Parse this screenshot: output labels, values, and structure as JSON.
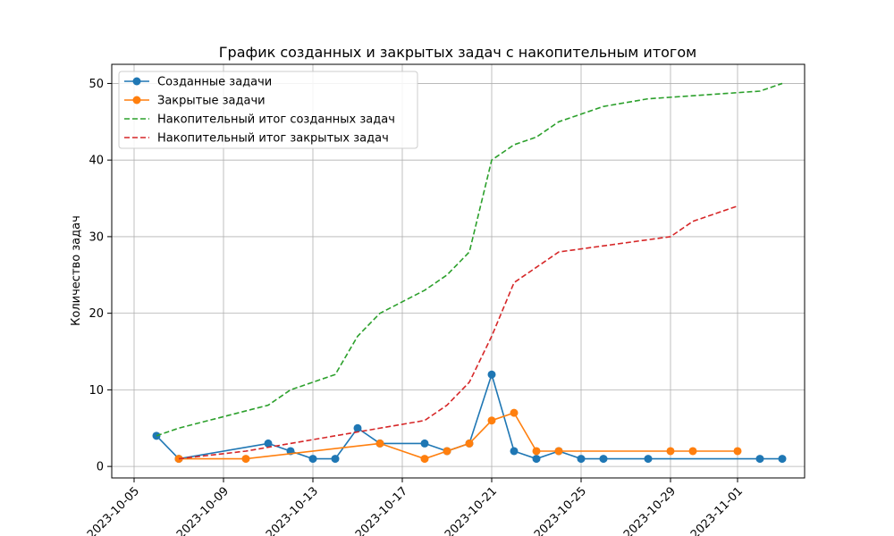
{
  "chart_data": {
    "type": "line",
    "title": "График созданных и закрытых задач с накопительным итогом",
    "xlabel": "",
    "ylabel": "Количество задач",
    "xlim": [
      "2023-10-04",
      "2023-11-04"
    ],
    "ylim": [
      -1.5,
      52.5
    ],
    "x_ticks": [
      "2023-10-05",
      "2023-10-09",
      "2023-10-13",
      "2023-10-17",
      "2023-10-21",
      "2023-10-25",
      "2023-10-29",
      "2023-11-01"
    ],
    "y_ticks": [
      0,
      10,
      20,
      30,
      40,
      50
    ],
    "grid": true,
    "legend_position": "top-left",
    "series": [
      {
        "name": "Созданные задачи",
        "style": "solid-marker",
        "color": "#1f77b4",
        "points": [
          [
            "2023-10-06",
            4
          ],
          [
            "2023-10-07",
            1
          ],
          [
            "2023-10-11",
            3
          ],
          [
            "2023-10-12",
            2
          ],
          [
            "2023-10-13",
            1
          ],
          [
            "2023-10-14",
            1
          ],
          [
            "2023-10-15",
            5
          ],
          [
            "2023-10-16",
            3
          ],
          [
            "2023-10-18",
            3
          ],
          [
            "2023-10-19",
            2
          ],
          [
            "2023-10-20",
            3
          ],
          [
            "2023-10-21",
            12
          ],
          [
            "2023-10-22",
            2
          ],
          [
            "2023-10-23",
            1
          ],
          [
            "2023-10-24",
            2
          ],
          [
            "2023-10-25",
            1
          ],
          [
            "2023-10-26",
            1
          ],
          [
            "2023-10-28",
            1
          ],
          [
            "2023-11-02",
            1
          ],
          [
            "2023-11-03",
            1
          ]
        ]
      },
      {
        "name": "Закрытые задачи",
        "style": "solid-marker",
        "color": "#ff7f0e",
        "points": [
          [
            "2023-10-07",
            1
          ],
          [
            "2023-10-10",
            1
          ],
          [
            "2023-10-16",
            3
          ],
          [
            "2023-10-18",
            1
          ],
          [
            "2023-10-19",
            2
          ],
          [
            "2023-10-20",
            3
          ],
          [
            "2023-10-21",
            6
          ],
          [
            "2023-10-22",
            7
          ],
          [
            "2023-10-23",
            2
          ],
          [
            "2023-10-24",
            2
          ],
          [
            "2023-10-29",
            2
          ],
          [
            "2023-10-30",
            2
          ],
          [
            "2023-11-01",
            2
          ]
        ]
      },
      {
        "name": "Накопительный итог созданных задач",
        "style": "dashed",
        "color": "#2ca02c",
        "points": [
          [
            "2023-10-06",
            4
          ],
          [
            "2023-10-07",
            5
          ],
          [
            "2023-10-11",
            8
          ],
          [
            "2023-10-12",
            10
          ],
          [
            "2023-10-13",
            11
          ],
          [
            "2023-10-14",
            12
          ],
          [
            "2023-10-15",
            17
          ],
          [
            "2023-10-16",
            20
          ],
          [
            "2023-10-18",
            23
          ],
          [
            "2023-10-19",
            25
          ],
          [
            "2023-10-20",
            28
          ],
          [
            "2023-10-21",
            40
          ],
          [
            "2023-10-22",
            42
          ],
          [
            "2023-10-23",
            43
          ],
          [
            "2023-10-24",
            45
          ],
          [
            "2023-10-25",
            46
          ],
          [
            "2023-10-26",
            47
          ],
          [
            "2023-10-28",
            48
          ],
          [
            "2023-11-02",
            49
          ],
          [
            "2023-11-03",
            50
          ]
        ]
      },
      {
        "name": "Накопительный итог закрытых задач",
        "style": "dashed",
        "color": "#d62728",
        "points": [
          [
            "2023-10-07",
            1
          ],
          [
            "2023-10-10",
            2
          ],
          [
            "2023-10-16",
            5
          ],
          [
            "2023-10-18",
            6
          ],
          [
            "2023-10-19",
            8
          ],
          [
            "2023-10-20",
            11
          ],
          [
            "2023-10-21",
            17
          ],
          [
            "2023-10-22",
            24
          ],
          [
            "2023-10-23",
            26
          ],
          [
            "2023-10-24",
            28
          ],
          [
            "2023-10-29",
            30
          ],
          [
            "2023-10-30",
            32
          ],
          [
            "2023-11-01",
            34
          ]
        ]
      }
    ]
  }
}
